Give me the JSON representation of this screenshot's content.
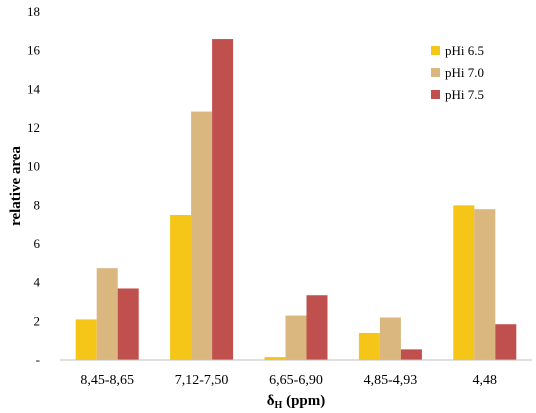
{
  "chart_data": {
    "type": "bar",
    "categories": [
      "8,45-8,65",
      "7,12-7,50",
      "6,65-6,90",
      "4,85-4,93",
      "4,48"
    ],
    "series": [
      {
        "name": "pHi 6.5",
        "color": "#F5C518",
        "values": [
          2.1,
          7.5,
          0.15,
          1.4,
          8.0
        ]
      },
      {
        "name": "pHi 7.0",
        "color": "#D9B77E",
        "values": [
          4.75,
          12.85,
          2.3,
          2.2,
          7.8
        ]
      },
      {
        "name": "pHi 7.5",
        "color": "#C0504D",
        "values": [
          3.7,
          16.6,
          3.35,
          0.55,
          1.85
        ]
      }
    ],
    "ylim": [
      0,
      18
    ],
    "yticks": [
      0,
      2,
      4,
      6,
      8,
      10,
      12,
      14,
      16,
      18
    ],
    "ytick_labels": [
      "-",
      "2",
      "4",
      "6",
      "8",
      "10",
      "12",
      "14",
      "16",
      "18"
    ],
    "ylabel": "relative area",
    "xlabel_main": "δ",
    "xlabel_sub": "H",
    "xlabel_unit": " (ppm)",
    "legend_position": "top-right",
    "grid": false
  }
}
